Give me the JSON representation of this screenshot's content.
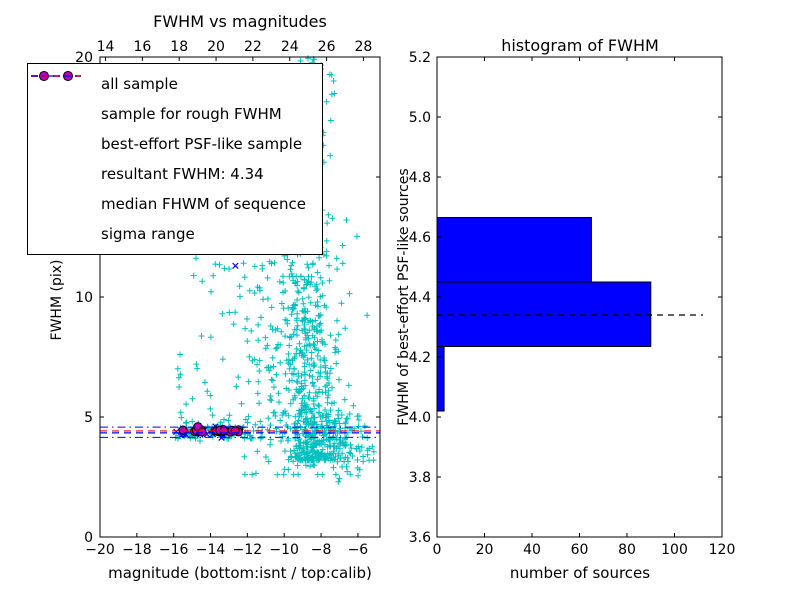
{
  "figure": {
    "left_plot": {
      "title": "FWHM vs magnitudes",
      "xlabel": "magnitude (bottom:isnt / top:calib)",
      "ylabel": "FWHM (pix)"
    },
    "right_plot": {
      "title": "histogram of FWHM",
      "xlabel": "number of sources",
      "ylabel": "FWHM of best-effort PSF-like sources"
    },
    "legend": {
      "items": [
        {
          "label": "all sample",
          "marker": "plus",
          "color": "#00bfbf"
        },
        {
          "label": "sample for rough FWHM",
          "marker": "x",
          "color": "#0000ff"
        },
        {
          "label": "best-effort PSF-like sample",
          "marker": "circle",
          "color": "#bf00bf"
        },
        {
          "label": "resultant FWHM: 4.34",
          "marker": "dashed-line",
          "color": "#0000ff"
        },
        {
          "label": "median FHWM of sequence",
          "marker": "dashed-line",
          "color": "#ff0000"
        },
        {
          "label": "sigma range",
          "marker": "dashdot-line",
          "color": "#0000ff"
        }
      ]
    }
  },
  "chart_data": [
    {
      "type": "scatter",
      "title": "FWHM vs magnitudes",
      "xlabel": "magnitude (bottom:isnt / top:calib)",
      "ylabel": "FWHM (pix)",
      "xlim": [
        -20,
        -4.8
      ],
      "ylim": [
        0,
        20
      ],
      "x_tick_values": [
        -20,
        -18,
        -16,
        -14,
        -12,
        -10,
        -8,
        -6
      ],
      "x_tick_labels": [
        "−20",
        "−18",
        "−16",
        "−14",
        "−12",
        "−10",
        "−8",
        "−6"
      ],
      "top_tick_values": [
        14,
        16,
        18,
        20,
        22,
        24,
        26,
        28
      ],
      "top_tick_labels": [
        "14",
        "16",
        "18",
        "20",
        "22",
        "24",
        "26",
        "28"
      ],
      "top_axis_offset": 33.7,
      "y_tick_values": [
        0,
        5,
        10,
        15,
        20
      ],
      "y_tick_labels": [
        "0",
        "5",
        "10",
        "15",
        "20"
      ],
      "lines": {
        "resultant_fwhm": {
          "value": 4.34,
          "style": "dashed",
          "color": "#0000ff"
        },
        "median_fwhm": {
          "value": 4.42,
          "style": "dashed",
          "color": "#ff0000"
        },
        "sigma_range": {
          "values": [
            4.15,
            4.58
          ],
          "style": "dashdot",
          "color": "#0000ff"
        }
      },
      "note": "dense point clouds are approximated by seeded distribution clusters read from the pixels",
      "series": {
        "all_sample": {
          "marker": "plus",
          "color": "#00bfbf",
          "clusters": [
            {
              "seed": 11,
              "n": 430,
              "x": {
                "dist": "normal",
                "mean": -8.6,
                "sd": 0.6
              },
              "y": {
                "dist": "power",
                "min": 3.2,
                "max": 20,
                "exp": 2.1
              }
            },
            {
              "seed": 22,
              "n": 240,
              "x": {
                "dist": "normal",
                "mean": -9.6,
                "sd": 1.5
              },
              "y": {
                "dist": "normal",
                "mean": 8.0,
                "sd": 3.2,
                "clip": [
                  2.6,
                  19.9
                ]
              }
            },
            {
              "seed": 33,
              "n": 90,
              "x": {
                "dist": "uniform",
                "min": -16.0,
                "max": -11.2
              },
              "y": {
                "dist": "power",
                "min": 4.1,
                "max": 15.5,
                "exp": 2.6
              }
            },
            {
              "seed": 44,
              "n": 90,
              "x": {
                "dist": "uniform",
                "min": -15.9,
                "max": -12.1
              },
              "y": {
                "dist": "normal",
                "mean": 4.45,
                "sd": 0.14,
                "clip": [
                  4.0,
                  5.0
                ]
              }
            },
            {
              "seed": 55,
              "n": 80,
              "x": {
                "dist": "normal",
                "mean": -7.1,
                "sd": 0.55
              },
              "y": {
                "dist": "normal",
                "mean": 3.8,
                "sd": 0.65,
                "clip": [
                  1.7,
                  5.5
                ]
              }
            },
            {
              "seed": 66,
              "n": 26,
              "x": {
                "dist": "uniform",
                "min": -10.8,
                "max": -7.2
              },
              "y": {
                "dist": "uniform",
                "min": 17.6,
                "max": 19.95
              }
            },
            {
              "seed": 77,
              "n": 60,
              "x": {
                "dist": "uniform",
                "min": -11.6,
                "max": -6.2
              },
              "y": {
                "dist": "power",
                "min": 4.4,
                "max": 17.0,
                "exp": 2.0
              }
            },
            {
              "seed": 88,
              "n": 90,
              "x": {
                "dist": "normal",
                "mean": -8.2,
                "sd": 1.1
              },
              "y": {
                "dist": "normal",
                "mean": 4.7,
                "sd": 0.55,
                "clip": [
                  3.2,
                  6.5
                ]
              }
            },
            {
              "seed": 99,
              "n": 15,
              "x": {
                "dist": "uniform",
                "min": -6.3,
                "max": -5.1
              },
              "y": {
                "dist": "normal",
                "mean": 3.6,
                "sd": 0.6,
                "clip": [
                  2.2,
                  5.0
                ]
              }
            }
          ]
        },
        "rough_fwhm_sample": {
          "marker": "x",
          "color": "#0000ff",
          "clusters": [
            {
              "seed": 7,
              "n": 25,
              "x": {
                "dist": "uniform",
                "min": -15.9,
                "max": -12.25
              },
              "y": {
                "dist": "normal",
                "mean": 4.35,
                "sd": 0.1,
                "clip": [
                  4.05,
                  4.7
                ]
              }
            }
          ],
          "points": [
            [
              -12.65,
              11.3
            ]
          ]
        },
        "psf_like_sample": {
          "marker": "circle",
          "color": "#bf00bf",
          "edge_color": "#000000",
          "clusters": [
            {
              "seed": 5,
              "n": 24,
              "x": {
                "dist": "uniform",
                "min": -15.55,
                "max": -12.45
              },
              "y": {
                "dist": "normal",
                "mean": 4.42,
                "sd": 0.07,
                "clip": [
                  4.25,
                  4.6
                ]
              }
            }
          ]
        }
      }
    },
    {
      "type": "bar",
      "orientation": "horizontal",
      "title": "histogram of FWHM",
      "xlabel": "number of sources",
      "ylabel": "FWHM of best-effort PSF-like sources",
      "xlim": [
        0,
        120
      ],
      "ylim": [
        3.6,
        5.2
      ],
      "x_tick_values": [
        0,
        20,
        40,
        60,
        80,
        100,
        120
      ],
      "x_tick_labels": [
        "0",
        "20",
        "40",
        "60",
        "80",
        "100",
        "120"
      ],
      "y_tick_values": [
        3.6,
        3.8,
        4.0,
        4.2,
        4.4,
        4.6,
        4.8,
        5.0,
        5.2
      ],
      "y_tick_labels": [
        "3.6",
        "3.8",
        "4.0",
        "4.2",
        "4.4",
        "4.6",
        "4.8",
        "5.0",
        "5.2"
      ],
      "bar_color": "#0000ff",
      "bar_edge_color": "#000000",
      "bins": [
        {
          "from": 4.02,
          "to": 4.235,
          "count": 3
        },
        {
          "from": 4.235,
          "to": 4.45,
          "count": 90
        },
        {
          "from": 4.45,
          "to": 4.665,
          "count": 65
        }
      ],
      "dashed_line": {
        "value": 4.34,
        "xmax": 112,
        "style": "dashed",
        "color": "#000000"
      }
    }
  ]
}
